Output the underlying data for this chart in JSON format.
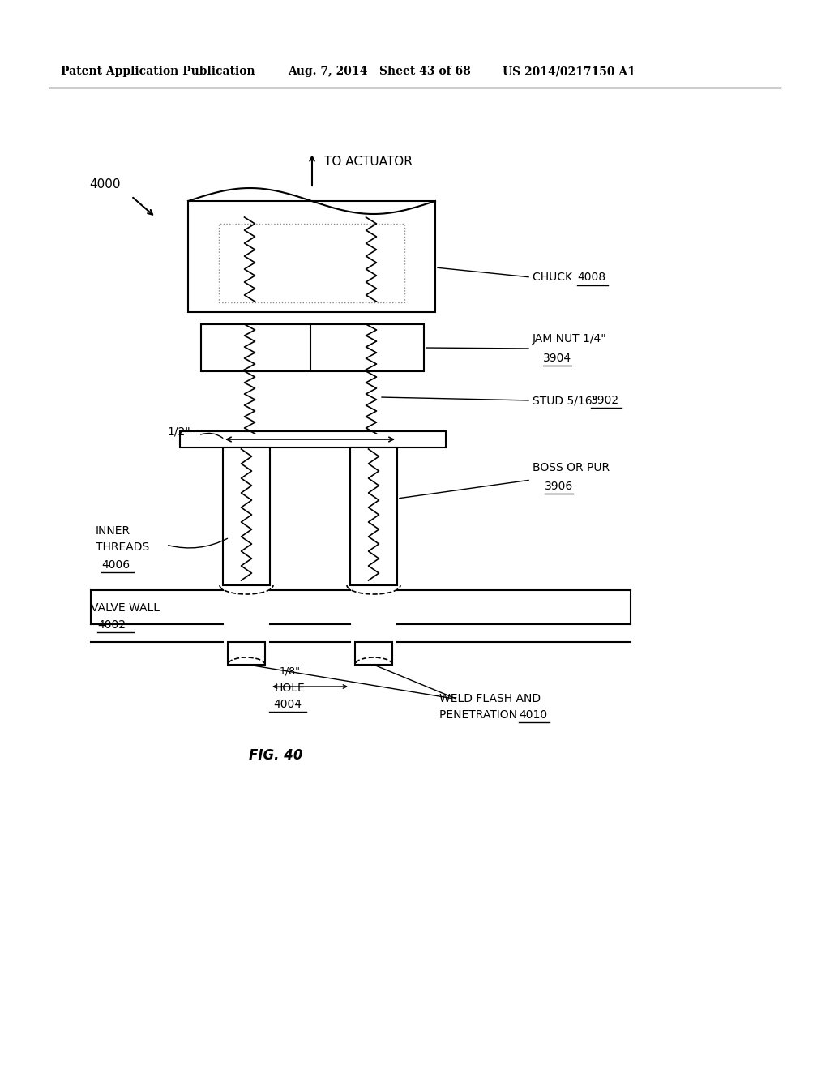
{
  "bg_color": "#ffffff",
  "header_text": "Patent Application Publication",
  "header_date": "Aug. 7, 2014   Sheet 43 of 68",
  "header_patent": "US 2014/0217150 A1",
  "fig_label": "FIG. 40",
  "diagram_label": "4000",
  "to_actuator": "TO ACTUATOR",
  "chuck_label": "CHUCK ",
  "chuck_num": "4008",
  "jam_nut_label": "JAM NUT 1/4\"",
  "jam_nut_num": "3904",
  "stud_label": "STUD 5/16\" ",
  "stud_num": "3902",
  "boss_label": "BOSS OR PUR",
  "boss_num": "3906",
  "inner_threads_1": "INNER",
  "inner_threads_2": "THREADS",
  "inner_threads_num": "4006",
  "valve_wall_label": "VALVE WALL",
  "valve_wall_num": "4002",
  "hole_dim": "1/8\"",
  "hole_label": "HOLE",
  "hole_num": "4004",
  "weld_label_1": "WELD FLASH AND",
  "weld_label_2": "PENETRATION ",
  "weld_num": "4010",
  "half_inch": "1/2\""
}
